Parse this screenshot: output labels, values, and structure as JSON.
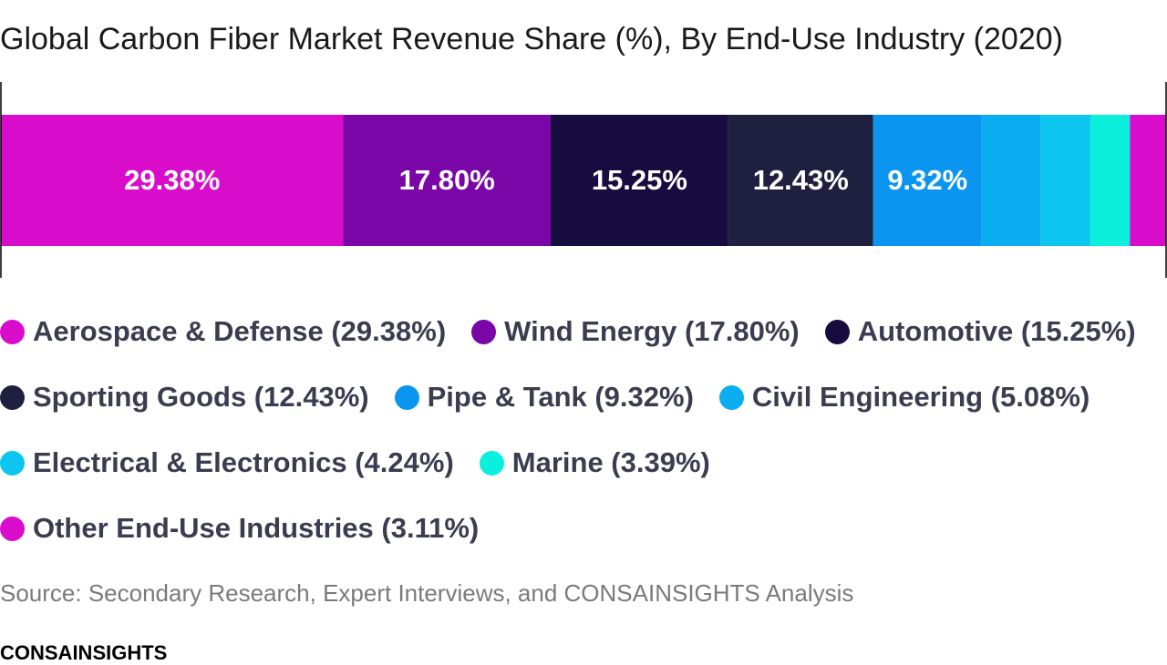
{
  "chart_data": {
    "type": "stacked_bar",
    "title": "Global Carbon Fiber Market Revenue Share (%), By End-Use Industry (2020)",
    "xlim": [
      0,
      100
    ],
    "series": [
      {
        "name": "Aerospace & Defense (29.38%)",
        "color": "#d90ccc",
        "values": [
          29.38
        ],
        "value_labels": [
          "29.38%"
        ]
      },
      {
        "name": "Wind Energy (17.80%)",
        "color": "#7a06a8",
        "values": [
          17.8
        ],
        "value_labels": [
          "17.80%"
        ]
      },
      {
        "name": "Automotive (15.25%)",
        "color": "#170c40",
        "values": [
          15.25
        ],
        "value_labels": [
          "15.25%"
        ]
      },
      {
        "name": "Sporting Goods (12.43%)",
        "color": "#1f2040",
        "values": [
          12.43
        ],
        "value_labels": [
          "12.43%"
        ]
      },
      {
        "name": "Pipe & Tank (9.32%)",
        "color": "#0a96f0",
        "values": [
          9.32
        ],
        "value_labels": [
          "9.32%"
        ]
      },
      {
        "name": "Civil Engineering (5.08%)",
        "color": "#0aaef0",
        "values": [
          5.08
        ]
      },
      {
        "name": "Electrical & Electronics (4.24%)",
        "color": "#0cc6f0",
        "values": [
          4.24
        ]
      },
      {
        "name": "Marine (3.39%)",
        "color": "#0af0dc",
        "values": [
          3.39
        ]
      },
      {
        "name": "Other End-Use Industries (3.11%)",
        "color": "#d90ccc",
        "values": [
          3.11
        ]
      }
    ]
  },
  "source": "Source: Secondary Research, Expert Interviews, and CONSAINSIGHTS Analysis",
  "brand": "CONSAINSIGHTS"
}
